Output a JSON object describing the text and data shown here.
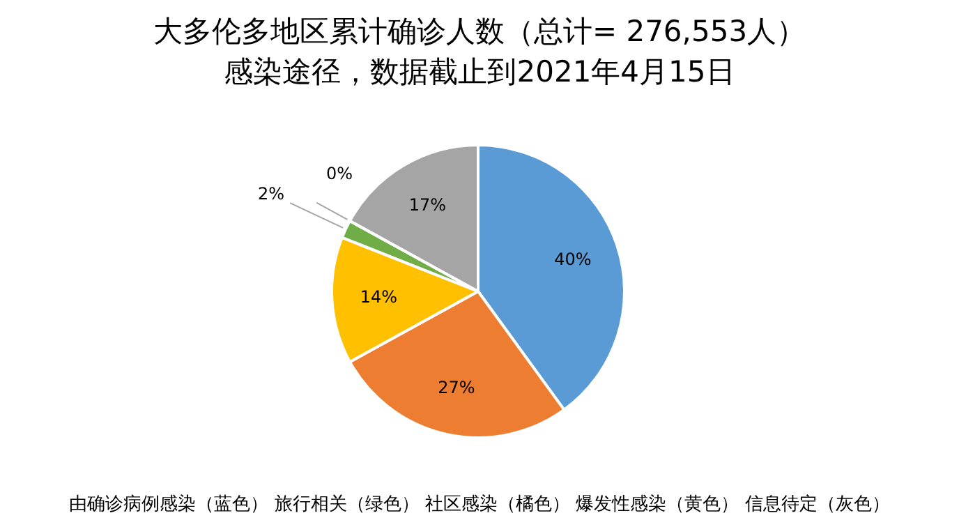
{
  "chart_data": {
    "type": "pie",
    "title": "大多伦多地区累计确诊人数（总计= 276,553人）",
    "subtitle": "感染途径，数据截止到2021年4月15日",
    "categories": [
      null,
      null,
      null,
      null,
      null,
      null
    ],
    "values": [
      40,
      27,
      14,
      2,
      0,
      17
    ],
    "colors": [
      "#5b9bd5",
      "#ed7d31",
      "#ffc000",
      "#70ad47",
      "#264478",
      "#a5a5a5"
    ],
    "value_labels": [
      "40%",
      "27%",
      "14%",
      "2%",
      "0%",
      "17%"
    ],
    "annotations": [
      "由确诊病例感染（蓝色） 旅行相关（绿色） 社区感染（橘色） 爆发性感染（黄色） 信息待定（灰色）"
    ]
  }
}
